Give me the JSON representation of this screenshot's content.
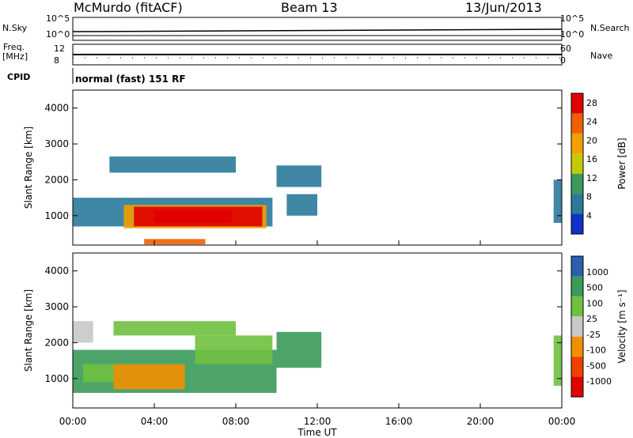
{
  "header": {
    "station": "McMurdo (fitACF)",
    "beam": "Beam 13",
    "date": "13/Jun/2013"
  },
  "meta_panels": {
    "nsky_label": "N.Sky",
    "nsky_ticks": [
      "10^5",
      "10^0"
    ],
    "nsearch_label": "N.Search",
    "nsearch_ticks": [
      "10^5",
      "10^0"
    ],
    "freq_label_1": "Freq.",
    "freq_label_2": "[MHz]",
    "freq_ticks": [
      "12",
      "8"
    ],
    "nave_label": "Nave",
    "nave_ticks": [
      "60",
      "0"
    ],
    "cpid_label": "CPID",
    "cpid_text": "normal (fast) 151 RF"
  },
  "colors": {
    "power": [
      "#1030c8",
      "#2a7a9a",
      "#3a9a5a",
      "#c8c800",
      "#f0a000",
      "#f06000",
      "#e00000"
    ],
    "velocity": [
      "#e00000",
      "#f04000",
      "#f09000",
      "#c8c8c8",
      "#70c040",
      "#3a9a5a",
      "#2a5fb0"
    ]
  },
  "chart_data": [
    {
      "type": "heatmap",
      "title": "Power",
      "xlabel": "Time UT",
      "ylabel": "Slant Range [km]",
      "x_ticks": [
        "00:00",
        "04:00",
        "08:00",
        "12:00",
        "16:00",
        "20:00",
        "00:00"
      ],
      "y_ticks": [
        "1000",
        "2000",
        "3000",
        "4000"
      ],
      "ylim": [
        180,
        4500
      ],
      "colorbar_label": "Power [dB]",
      "colorbar_ticks": [
        "4",
        "8",
        "12",
        "16",
        "20",
        "24",
        "28"
      ],
      "colorbar_range": [
        0,
        30
      ],
      "patches": [
        {
          "t0": 0.0,
          "t1": 9.8,
          "r0": 700,
          "r1": 1500,
          "v": 6
        },
        {
          "t0": 2.5,
          "t1": 9.5,
          "r0": 650,
          "r1": 1300,
          "v": 18
        },
        {
          "t0": 3.0,
          "t1": 9.3,
          "r0": 700,
          "r1": 1250,
          "v": 26
        },
        {
          "t0": 4.0,
          "t1": 7.8,
          "r0": 800,
          "r1": 1150,
          "v": 30
        },
        {
          "t0": 3.5,
          "t1": 6.5,
          "r0": 200,
          "r1": 350,
          "v": 24
        },
        {
          "t0": 1.8,
          "t1": 8.0,
          "r0": 2200,
          "r1": 2650,
          "v": 5
        },
        {
          "t0": 10.0,
          "t1": 12.2,
          "r0": 1800,
          "r1": 2400,
          "v": 7
        },
        {
          "t0": 10.5,
          "t1": 12.0,
          "r0": 1000,
          "r1": 1600,
          "v": 5
        },
        {
          "t0": 23.6,
          "t1": 24.0,
          "r0": 800,
          "r1": 2000,
          "v": 6
        }
      ]
    },
    {
      "type": "heatmap",
      "title": "Velocity",
      "xlabel": "Time UT",
      "ylabel": "Slant Range [km]",
      "x_ticks": [
        "00:00",
        "04:00",
        "08:00",
        "12:00",
        "16:00",
        "20:00",
        "00:00"
      ],
      "y_ticks": [
        "1000",
        "2000",
        "3000",
        "4000"
      ],
      "ylim": [
        180,
        4500
      ],
      "colorbar_label": "Velocity [m s⁻¹]",
      "colorbar_ticks": [
        "1000",
        "500",
        "100",
        "25",
        "-25",
        "-100",
        "-500",
        "-1000"
      ],
      "patches": [
        {
          "t0": 0.0,
          "t1": 10.0,
          "r0": 600,
          "r1": 1800,
          "v": 5
        },
        {
          "t0": 2.0,
          "t1": 5.5,
          "r0": 700,
          "r1": 1400,
          "v": 2
        },
        {
          "t0": 0.5,
          "t1": 2.0,
          "r0": 900,
          "r1": 1400,
          "v": 4
        },
        {
          "t0": 6.0,
          "t1": 9.8,
          "r0": 1400,
          "r1": 2200,
          "v": 4
        },
        {
          "t0": 0.0,
          "t1": 1.0,
          "r0": 2000,
          "r1": 2600,
          "v": 3
        },
        {
          "t0": 2.0,
          "t1": 8.0,
          "r0": 2200,
          "r1": 2600,
          "v": 4
        },
        {
          "t0": 10.0,
          "t1": 12.2,
          "r0": 1300,
          "r1": 2300,
          "v": 5
        },
        {
          "t0": 23.6,
          "t1": 24.0,
          "r0": 800,
          "r1": 2200,
          "v": 4
        }
      ]
    }
  ]
}
